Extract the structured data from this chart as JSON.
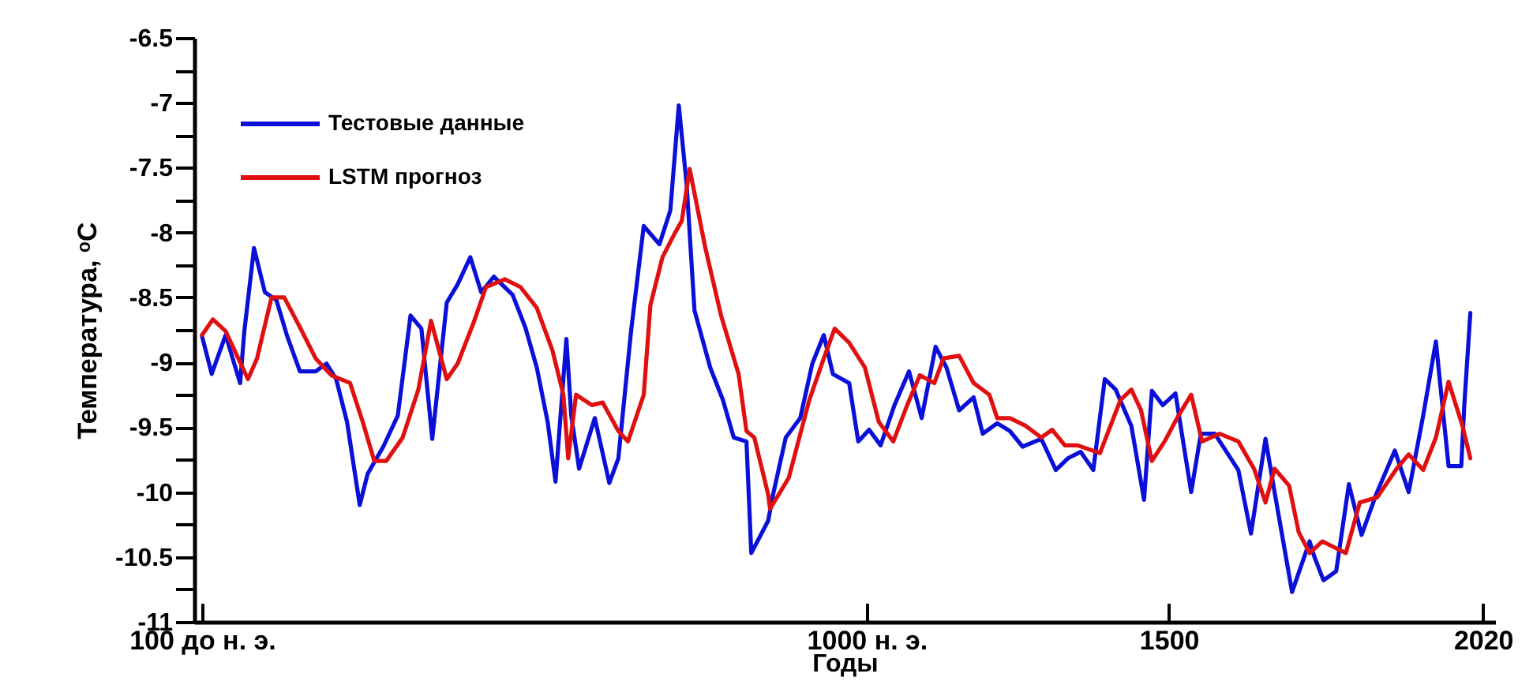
{
  "chart_data": {
    "type": "line",
    "xlabel": "Годы",
    "ylabel": "Температура, ᵒC",
    "xlim": [
      -113,
      2040
    ],
    "xticks": [
      {
        "value": -100,
        "label": "100 до н. э."
      },
      {
        "value": 1000,
        "label": "1000 н. э."
      },
      1500,
      2020
    ],
    "ylim": [
      -11,
      -6.5
    ],
    "yticks": [
      -11,
      {
        "value": -10.75,
        "label": null
      },
      -10.5,
      {
        "value": -10.25,
        "label": null
      },
      -10,
      {
        "value": -9.75,
        "label": null
      },
      -9.5,
      {
        "value": -9.25,
        "label": null
      },
      -9,
      {
        "value": -8.75,
        "label": null
      },
      -8.5,
      {
        "value": -8.25,
        "label": null
      },
      -8,
      {
        "value": -7.75,
        "label": null
      },
      -7.5,
      {
        "value": -7.25,
        "label": null
      },
      -7,
      {
        "value": -6.75,
        "label": null
      },
      -6.5
    ],
    "grid": false,
    "legend": "top left",
    "marker": "none",
    "line_style": "solid",
    "series": [
      {
        "name": "Тестовые данные",
        "color": "#0a10d8",
        "x": [
          -100,
          -84,
          -61,
          -37,
          -30,
          -14,
          4,
          23,
          41,
          62,
          88,
          106,
          122,
          140,
          161,
          174,
          200,
          224,
          245,
          263,
          281,
          305,
          323,
          344,
          362,
          383,
          414,
          435,
          454,
          472,
          485,
          503,
          511,
          524,
          550,
          574,
          589,
          610,
          631,
          657,
          675,
          689,
          702,
          715,
          741,
          762,
          780,
          801,
          809,
          837,
          845,
          866,
          890,
          910,
          929,
          944,
          971,
          986,
          1004,
          1023,
          1046,
          1070,
          1091,
          1114,
          1132,
          1153,
          1177,
          1192,
          1216,
          1237,
          1258,
          1289,
          1313,
          1333,
          1354,
          1375,
          1394,
          1412,
          1438,
          1459,
          1472,
          1490,
          1511,
          1537,
          1553,
          1576,
          1615,
          1636,
          1660,
          1675,
          1704,
          1733,
          1741,
          1756,
          1777,
          1798,
          1819,
          1843,
          1874,
          1897,
          1921,
          1942,
          1963,
          1984,
          1989,
          1999
        ],
        "values": [
          -8.8,
          -9.09,
          -8.79,
          -9.16,
          -8.76,
          -8.12,
          -8.46,
          -8.52,
          -8.8,
          -9.07,
          -9.07,
          -9.01,
          -9.13,
          -9.46,
          -10.1,
          -9.86,
          -9.65,
          -9.41,
          -8.64,
          -8.74,
          -9.59,
          -8.54,
          -8.4,
          -8.19,
          -8.46,
          -8.34,
          -8.48,
          -8.73,
          -9.04,
          -9.46,
          -9.92,
          -8.82,
          -9.41,
          -9.82,
          -9.43,
          -9.93,
          -9.74,
          -8.76,
          -7.95,
          -8.09,
          -7.83,
          -7.02,
          -7.63,
          -8.6,
          -9.04,
          -9.29,
          -9.58,
          -9.61,
          -10.47,
          -10.22,
          -10.02,
          -9.58,
          -9.43,
          -9.01,
          -8.79,
          -9.09,
          -9.16,
          -9.61,
          -9.52,
          -9.64,
          -9.33,
          -9.07,
          -9.43,
          -8.88,
          -9.04,
          -9.37,
          -9.27,
          -9.55,
          -9.47,
          -9.53,
          -9.65,
          -9.59,
          -9.83,
          -9.74,
          -9.69,
          -9.83,
          -9.13,
          -9.21,
          -9.49,
          -10.06,
          -9.22,
          -9.33,
          -9.24,
          -10.0,
          -9.55,
          -9.55,
          -9.83,
          -10.32,
          -9.59,
          -10.0,
          -10.77,
          -10.38,
          -10.5,
          -10.68,
          -10.61,
          -9.94,
          -10.33,
          -10.02,
          -9.68,
          -10.0,
          -9.41,
          -8.84,
          -9.8,
          -9.8,
          -9.33,
          -8.62
        ]
      },
      {
        "name": "LSTM прогноз",
        "color": "#e01010",
        "x": [
          -100,
          -82,
          -61,
          -24,
          -9,
          15,
          36,
          62,
          88,
          114,
          145,
          166,
          185,
          205,
          232,
          258,
          279,
          305,
          323,
          349,
          370,
          401,
          427,
          454,
          480,
          498,
          506,
          519,
          545,
          563,
          589,
          605,
          631,
          642,
          662,
          683,
          694,
          707,
          733,
          759,
          788,
          801,
          814,
          837,
          840,
          871,
          905,
          929,
          947,
          971,
          997,
          1020,
          1044,
          1067,
          1088,
          1112,
          1127,
          1153,
          1177,
          1203,
          1216,
          1237,
          1263,
          1289,
          1307,
          1328,
          1349,
          1386,
          1420,
          1438,
          1454,
          1472,
          1493,
          1516,
          1537,
          1555,
          1584,
          1615,
          1641,
          1660,
          1675,
          1699,
          1715,
          1733,
          1754,
          1793,
          1816,
          1845,
          1877,
          1897,
          1921,
          1942,
          1963,
          1986,
          1999
        ],
        "values": [
          -8.79,
          -8.67,
          -8.76,
          -9.13,
          -8.97,
          -8.5,
          -8.5,
          -8.73,
          -8.97,
          -9.1,
          -9.16,
          -9.46,
          -9.76,
          -9.76,
          -9.58,
          -9.21,
          -8.68,
          -9.13,
          -9.01,
          -8.7,
          -8.42,
          -8.36,
          -8.42,
          -8.58,
          -8.91,
          -9.25,
          -9.74,
          -9.25,
          -9.33,
          -9.31,
          -9.53,
          -9.61,
          -9.25,
          -8.56,
          -8.19,
          -8.0,
          -7.91,
          -7.51,
          -8.12,
          -8.64,
          -9.09,
          -9.53,
          -9.58,
          -10.02,
          -10.13,
          -9.89,
          -9.29,
          -8.97,
          -8.74,
          -8.85,
          -9.04,
          -9.46,
          -9.61,
          -9.33,
          -9.1,
          -9.16,
          -8.97,
          -8.95,
          -9.16,
          -9.25,
          -9.43,
          -9.43,
          -9.49,
          -9.58,
          -9.52,
          -9.64,
          -9.64,
          -9.7,
          -9.29,
          -9.21,
          -9.37,
          -9.76,
          -9.61,
          -9.41,
          -9.25,
          -9.61,
          -9.55,
          -9.61,
          -9.82,
          -10.08,
          -9.82,
          -9.95,
          -10.31,
          -10.47,
          -10.38,
          -10.47,
          -10.08,
          -10.04,
          -9.82,
          -9.71,
          -9.83,
          -9.58,
          -9.15,
          -9.49,
          -9.74
        ]
      }
    ]
  }
}
